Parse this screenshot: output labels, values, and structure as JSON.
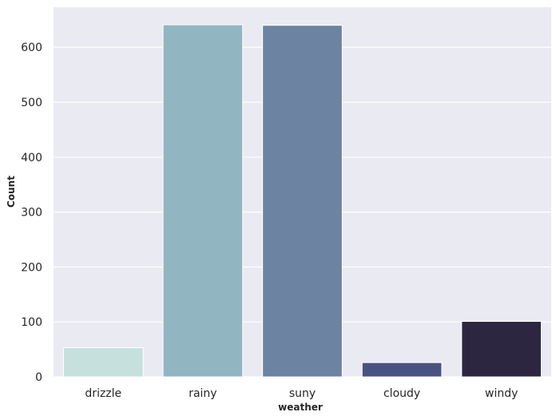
{
  "chart_data": {
    "type": "bar",
    "title": "",
    "xlabel": "weather",
    "ylabel": "Count",
    "categories": [
      "drizzle",
      "rainy",
      "suny",
      "cloudy",
      "windy"
    ],
    "values": [
      53,
      641,
      640,
      26,
      101
    ],
    "ylim": [
      0,
      673
    ],
    "yticks": [
      0,
      100,
      200,
      300,
      400,
      500,
      600
    ],
    "grid": true,
    "colors": [
      "#c6e0de",
      "#92b6c1",
      "#6d83a2",
      "#4a5280",
      "#2c2640"
    ],
    "background": "#eaeaf2",
    "grid_color": "#ffffff"
  }
}
